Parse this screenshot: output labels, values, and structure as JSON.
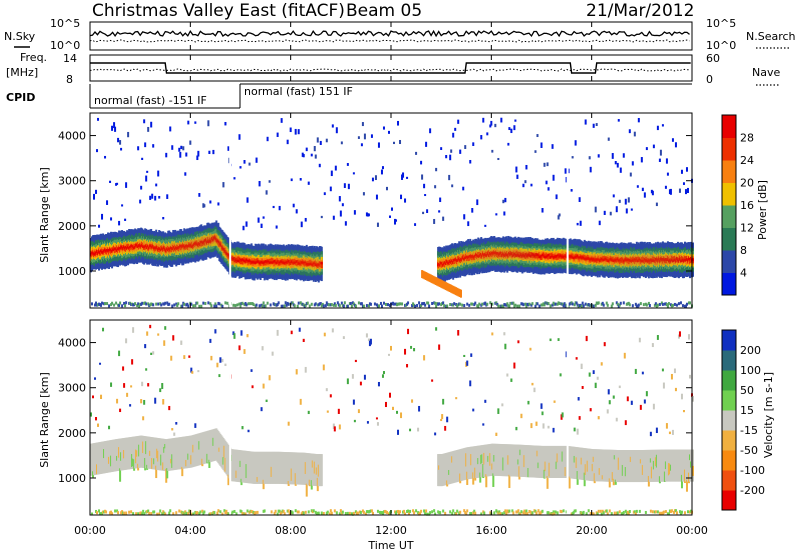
{
  "header": {
    "title": "Christmas Valley East (fitACF)",
    "beam": "Beam 05",
    "date": "21/Mar/2012"
  },
  "noise_panel": {
    "left_label": "N.Sky",
    "right_label": "N.Search",
    "left_ticks": [
      "10^5",
      "10^0"
    ],
    "right_ticks": [
      "10^5",
      "10^0"
    ]
  },
  "freq_panel": {
    "left_label_line1": "Freq.",
    "left_label_line2": "[MHz]",
    "right_label": "Nave",
    "left_ticks": [
      "14",
      "8"
    ],
    "right_ticks": [
      "60",
      "0"
    ]
  },
  "cpid_panel": {
    "label": "CPID",
    "segments": [
      {
        "start_h": 0,
        "end_h": 5.55,
        "text": "normal (fast) -151 IF"
      },
      {
        "start_h": 5.55,
        "end_h": 24,
        "text": "normal (fast) 151 IF"
      }
    ]
  },
  "x_axis": {
    "label": "Time UT",
    "ticks": [
      "00:00",
      "04:00",
      "08:00",
      "12:00",
      "16:00",
      "20:00",
      "00:00"
    ],
    "tick_hours": [
      0,
      4,
      8,
      12,
      16,
      20,
      24
    ]
  },
  "power_panel": {
    "ylabel": "Slant Range [km]",
    "yticks": [
      "1000",
      "2000",
      "3000",
      "4000"
    ],
    "colorbar_label": "Power [dB]",
    "colorbar_ticks": [
      "4",
      "8",
      "12",
      "16",
      "20",
      "24",
      "28"
    ],
    "colorbar_colors": [
      "#0018e0",
      "#2c47a8",
      "#2a7a55",
      "#56a060",
      "#f0c000",
      "#f88010",
      "#ee3000",
      "#e80000"
    ]
  },
  "velocity_panel": {
    "ylabel": "Slant Range [km]",
    "yticks": [
      "1000",
      "2000",
      "3000",
      "4000"
    ],
    "colorbar_label": "Velocity [m s-1]",
    "colorbar_ticks": [
      "200",
      "100",
      "50",
      "15",
      "-15",
      "-50",
      "-100",
      "-200"
    ],
    "colorbar_colors": [
      "#1030c0",
      "#2a6a7a",
      "#40a840",
      "#70d050",
      "#c8c8c0",
      "#f0b040",
      "#f88a10",
      "#f05010",
      "#e80000"
    ]
  },
  "chart_data": {
    "type": "heatmap",
    "title": "Christmas Valley East (fitACF)",
    "xlabel": "Time UT",
    "ylabel": "Slant Range [km]",
    "xlim": [
      0,
      24
    ],
    "ylim": [
      180,
      4500
    ],
    "power_band_centers": [
      [
        0,
        1380
      ],
      [
        1,
        1480
      ],
      [
        2,
        1560
      ],
      [
        3,
        1480
      ],
      [
        4,
        1560
      ],
      [
        5,
        1720
      ],
      [
        5.6,
        1260
      ],
      [
        6.5,
        1200
      ],
      [
        7.5,
        1200
      ],
      [
        8.5,
        1180
      ],
      [
        9.0,
        1150
      ],
      [
        14.0,
        1150
      ],
      [
        15.0,
        1300
      ],
      [
        16.0,
        1380
      ],
      [
        17.0,
        1360
      ],
      [
        18.0,
        1330
      ],
      [
        19.0,
        1330
      ],
      [
        20.0,
        1260
      ],
      [
        21.0,
        1240
      ],
      [
        22.0,
        1240
      ],
      [
        23.0,
        1250
      ],
      [
        24.0,
        1250
      ]
    ],
    "velocity_scatter_band": [
      [
        0,
        1500
      ],
      [
        5,
        1600
      ],
      [
        5.6,
        1300
      ],
      [
        9,
        1200
      ],
      [
        14,
        1200
      ],
      [
        15,
        1500
      ],
      [
        24,
        1450
      ]
    ]
  }
}
